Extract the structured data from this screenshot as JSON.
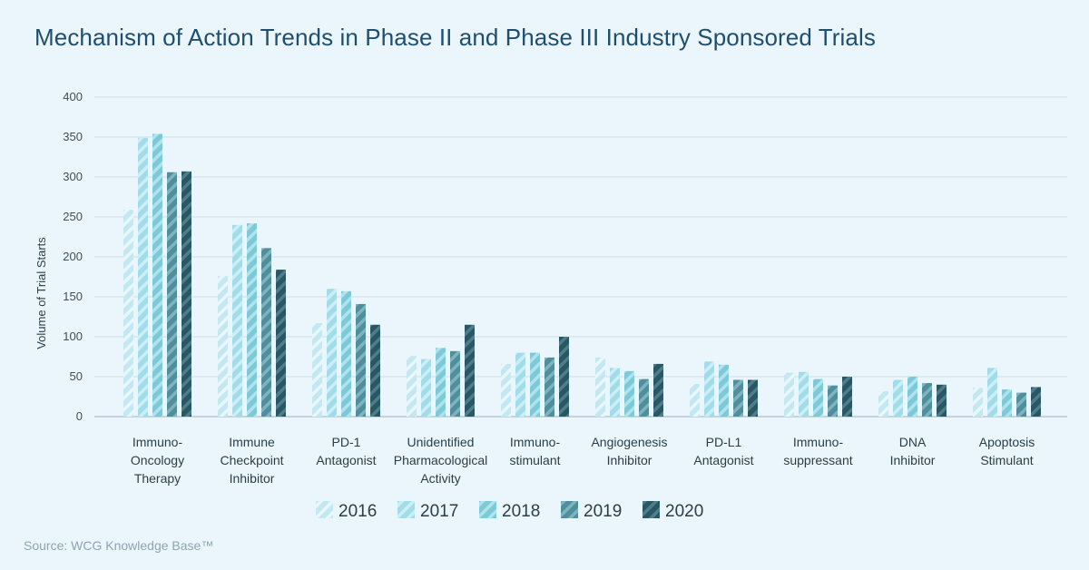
{
  "title": "Mechanism of Action Trends in Phase II and Phase III Industry Sponsored Trials",
  "source": "Source: WCG Knowledge Base™",
  "chart_data": {
    "type": "bar",
    "title": "Mechanism of Action Trends in Phase II and Phase III Industry Sponsored Trials",
    "ylabel": "Volume of Trial Starts",
    "xlabel": "",
    "ylim": [
      0,
      400
    ],
    "yticks": [
      0,
      50,
      100,
      150,
      200,
      250,
      300,
      350,
      400
    ],
    "grid": true,
    "legend_position": "bottom",
    "categories": [
      [
        "Immuno-",
        "Oncology",
        "Therapy"
      ],
      [
        "Immune",
        "Checkpoint",
        "Inhibitor"
      ],
      [
        "PD-1",
        "Antagonist"
      ],
      [
        "Unidentified",
        "Pharmacological",
        "Activity"
      ],
      [
        "Immuno-",
        "stimulant"
      ],
      [
        "Angiogenesis",
        "Inhibitor"
      ],
      [
        "PD-L1",
        "Antagonist"
      ],
      [
        "Immuno-",
        "suppressant"
      ],
      [
        "DNA",
        "Inhibitor"
      ],
      [
        "Apoptosis",
        "Stimulant"
      ]
    ],
    "series": [
      {
        "name": "2016",
        "color": "#c4e8f1",
        "stripe": "#e9f7fb",
        "values": [
          259,
          176,
          117,
          76,
          66,
          74,
          41,
          55,
          32,
          36
        ]
      },
      {
        "name": "2017",
        "color": "#a3dce9",
        "stripe": "#cdeef5",
        "values": [
          349,
          240,
          160,
          72,
          80,
          61,
          69,
          56,
          46,
          61
        ]
      },
      {
        "name": "2018",
        "color": "#7ccad8",
        "stripe": "#b2e2ea",
        "values": [
          354,
          242,
          157,
          86,
          80,
          57,
          65,
          47,
          50,
          34
        ]
      },
      {
        "name": "2019",
        "color": "#4f8f9c",
        "stripe": "#7fb3bd",
        "values": [
          306,
          211,
          141,
          82,
          74,
          47,
          46,
          39,
          42,
          30
        ]
      },
      {
        "name": "2020",
        "color": "#2a5764",
        "stripe": "#4f7d89",
        "values": [
          307,
          184,
          115,
          115,
          100,
          66,
          46,
          50,
          40,
          37
        ]
      }
    ]
  }
}
